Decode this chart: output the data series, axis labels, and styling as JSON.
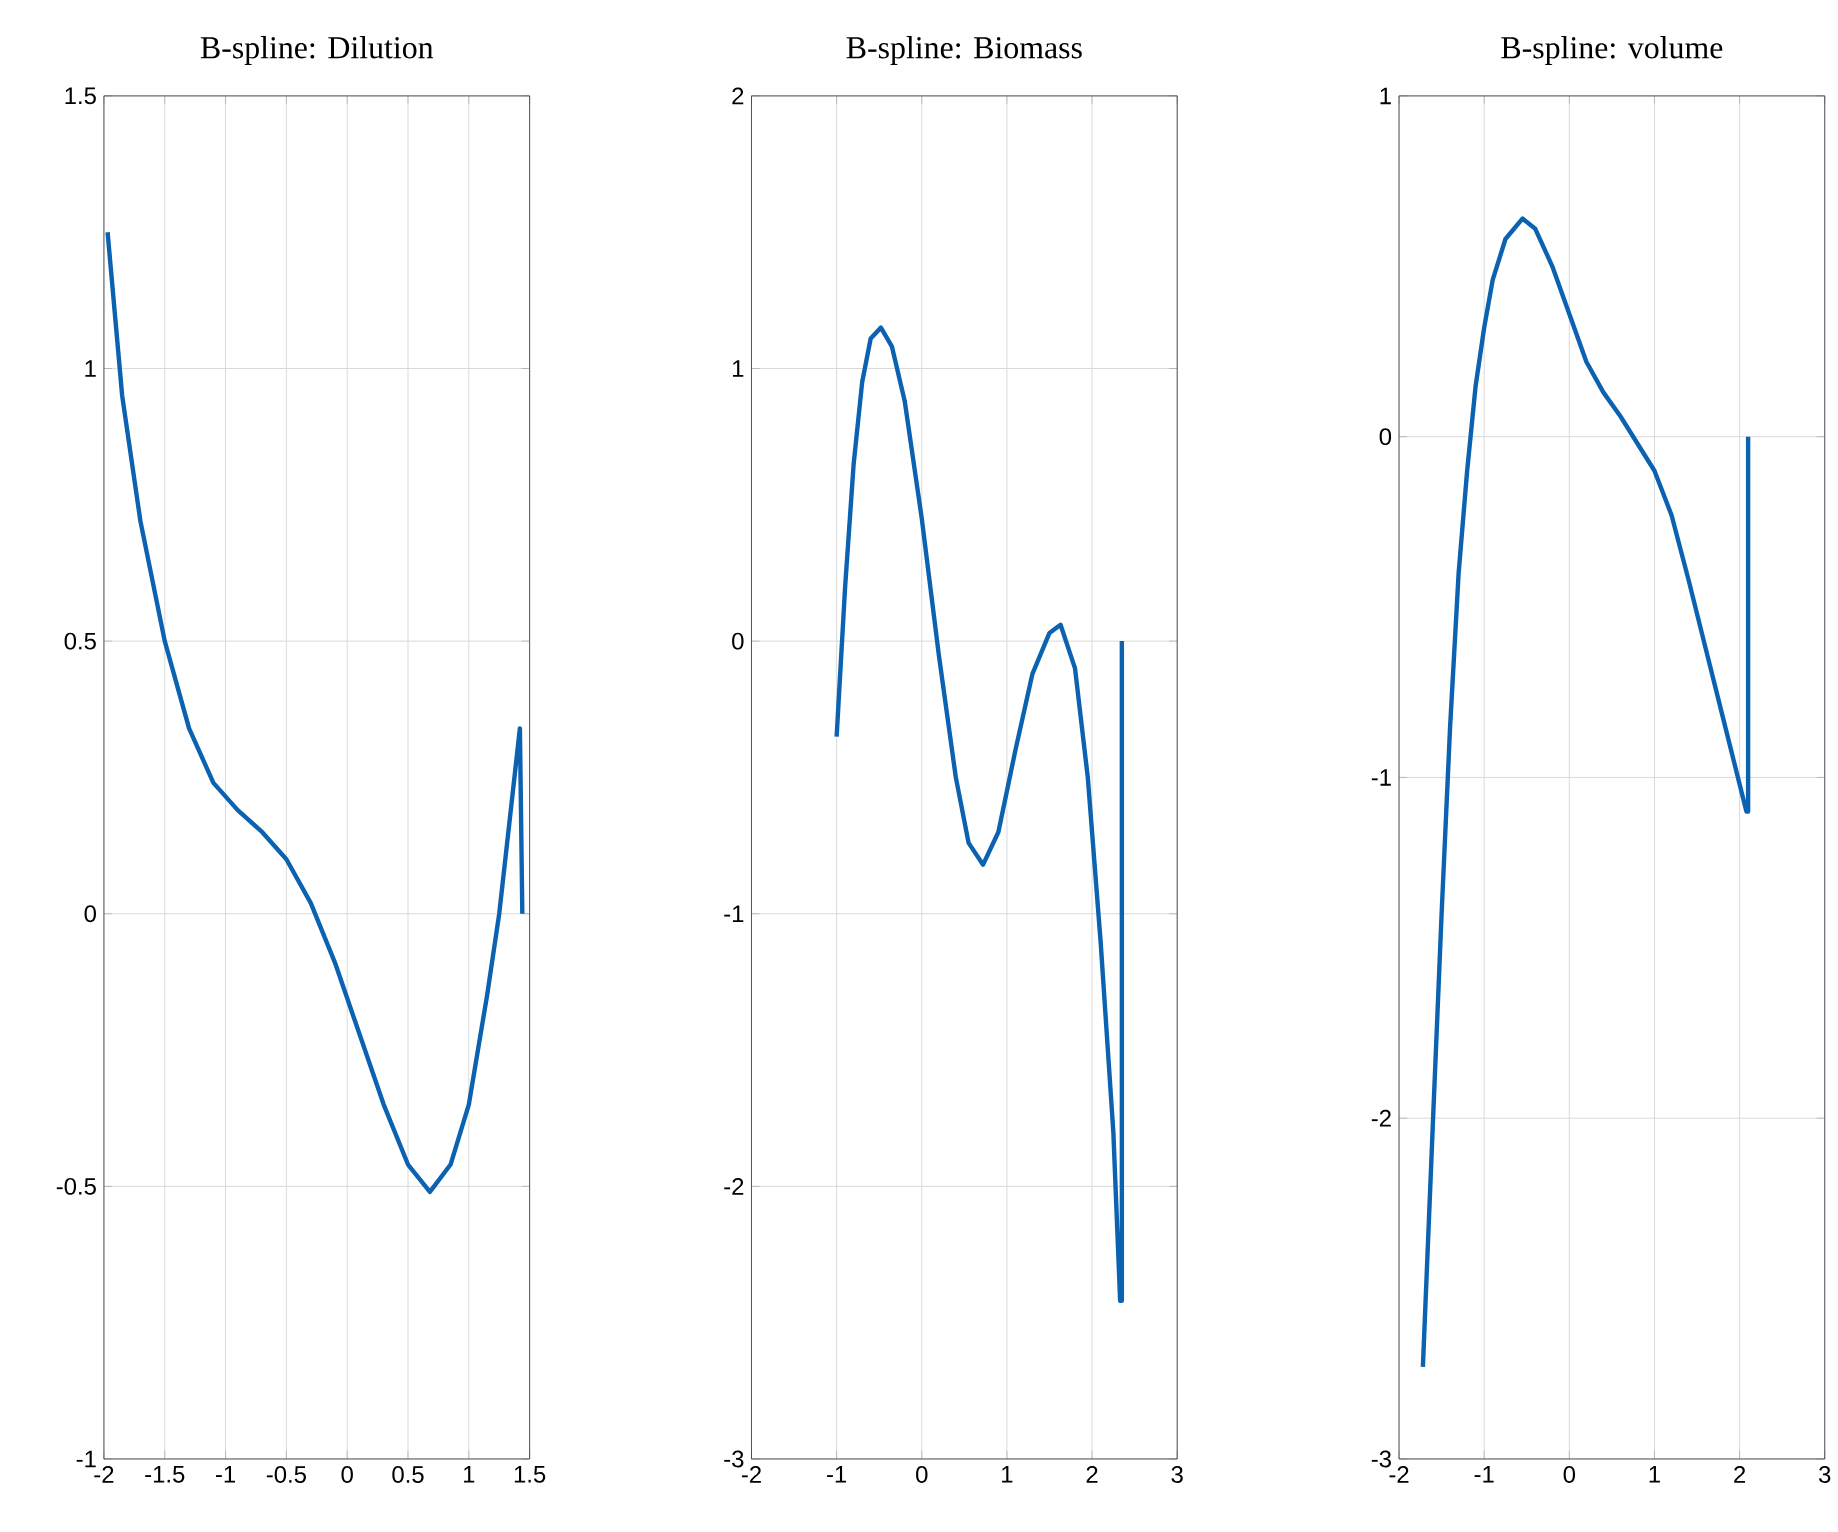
{
  "chart_data": [
    {
      "type": "line",
      "title": "B-spline: Dilution",
      "color": "#0b62b0",
      "grid": true,
      "x": [
        -1.97,
        -1.85,
        -1.7,
        -1.5,
        -1.3,
        -1.1,
        -0.9,
        -0.7,
        -0.5,
        -0.3,
        -0.1,
        0.1,
        0.3,
        0.5,
        0.68,
        0.85,
        1.0,
        1.15,
        1.25,
        1.35,
        1.42,
        1.44
      ],
      "values": [
        1.25,
        0.95,
        0.72,
        0.5,
        0.34,
        0.24,
        0.19,
        0.15,
        0.1,
        0.02,
        -0.09,
        -0.22,
        -0.35,
        -0.46,
        -0.51,
        -0.46,
        -0.35,
        -0.15,
        0.0,
        0.2,
        0.34,
        0.0
      ],
      "xlim": [
        -2,
        1.5
      ],
      "ylim": [
        -1,
        1.5
      ],
      "xticks": [
        -2,
        -1.5,
        -1,
        -0.5,
        0,
        0.5,
        1,
        1.5
      ],
      "yticks": [
        -1,
        -0.5,
        0,
        0.5,
        1,
        1.5
      ]
    },
    {
      "type": "line",
      "title": "B-spline: Biomass",
      "color": "#0b62b0",
      "grid": true,
      "x": [
        -1.0,
        -0.9,
        -0.8,
        -0.7,
        -0.6,
        -0.48,
        -0.35,
        -0.2,
        0,
        0.2,
        0.4,
        0.55,
        0.72,
        0.9,
        1.1,
        1.3,
        1.5,
        1.63,
        1.8,
        1.95,
        2.1,
        2.25,
        2.33,
        2.35,
        2.35
      ],
      "values": [
        -0.35,
        0.2,
        0.65,
        0.95,
        1.11,
        1.15,
        1.08,
        0.88,
        0.45,
        -0.05,
        -0.5,
        -0.74,
        -0.82,
        -0.7,
        -0.4,
        -0.12,
        0.03,
        0.06,
        -0.1,
        -0.5,
        -1.1,
        -1.8,
        -2.42,
        -2.42,
        0
      ],
      "xlim": [
        -2,
        3
      ],
      "ylim": [
        -3,
        2
      ],
      "xticks": [
        -2,
        -1,
        0,
        1,
        2,
        3
      ],
      "yticks": [
        -3,
        -2,
        -1,
        0,
        1,
        2
      ]
    },
    {
      "type": "line",
      "title": "B-spline: volume",
      "color": "#0b62b0",
      "grid": true,
      "x": [
        -1.72,
        -1.6,
        -1.5,
        -1.4,
        -1.3,
        -1.2,
        -1.1,
        -1.0,
        -0.9,
        -0.75,
        -0.55,
        -0.4,
        -0.2,
        0,
        0.2,
        0.4,
        0.6,
        0.8,
        1.0,
        1.2,
        1.4,
        1.6,
        1.8,
        2.0,
        2.08,
        2.1,
        2.1
      ],
      "values": [
        -2.73,
        -2.0,
        -1.4,
        -0.85,
        -0.4,
        -0.1,
        0.15,
        0.32,
        0.46,
        0.58,
        0.64,
        0.61,
        0.5,
        0.36,
        0.22,
        0.13,
        0.06,
        -0.02,
        -0.1,
        -0.23,
        -0.42,
        -0.62,
        -0.82,
        -1.02,
        -1.1,
        -1.1,
        0
      ],
      "xlim": [
        -2,
        3
      ],
      "ylim": [
        -3,
        1
      ],
      "xticks": [
        -2,
        -1,
        0,
        1,
        2,
        3
      ],
      "yticks": [
        -3,
        -2,
        -1,
        0,
        1
      ]
    }
  ]
}
